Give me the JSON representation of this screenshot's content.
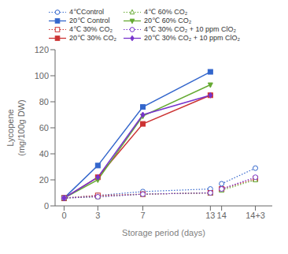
{
  "chart_data": {
    "type": "line",
    "x_label": "Storage period (days)",
    "y_label": "Lycopene\n(mg/100g DW)",
    "xlim": [
      -0.8,
      18.5
    ],
    "xticks": [
      0,
      3,
      7,
      13,
      14,
      {
        "value": 17,
        "label": "14+3"
      }
    ],
    "ylim": [
      0,
      120
    ],
    "yticks": [
      0,
      20,
      40,
      60,
      80,
      100,
      120
    ],
    "grid": false,
    "series": [
      {
        "name": "4℃Control",
        "color": "#3366cc",
        "marker": "circle",
        "line_style": "dotted",
        "x": [
          0,
          3,
          7,
          13
        ],
        "values": [
          6,
          8,
          11,
          13
        ]
      },
      {
        "name": "20℃ Control",
        "color": "#3366cc",
        "marker": "square",
        "line_style": "solid",
        "x": [
          0,
          3,
          7,
          13
        ],
        "values": [
          6,
          31,
          76,
          103
        ]
      },
      {
        "name": "4℃ 30% CO₂",
        "color": "#cc3333",
        "marker": "square",
        "line_style": "dotted",
        "x": [
          0,
          3,
          7,
          13
        ],
        "values": [
          6,
          8,
          9,
          10
        ]
      },
      {
        "name": "20℃ 30% CO₂",
        "color": "#cc3333",
        "marker": "square",
        "line_style": "solid",
        "x": [
          0,
          3,
          7,
          13
        ],
        "values": [
          6,
          22,
          63,
          85
        ]
      },
      {
        "name": "4℃ 60% CO₂",
        "color": "#66aa33",
        "marker": "triangle-up",
        "line_style": "dotted",
        "x": [
          0,
          3,
          7,
          13
        ],
        "values": [
          6,
          7,
          9,
          10
        ]
      },
      {
        "name": "20℃ 60% CO₂",
        "color": "#66aa33",
        "marker": "triangle-down",
        "line_style": "solid",
        "x": [
          0,
          3,
          7,
          13
        ],
        "values": [
          6,
          20,
          69,
          93
        ]
      },
      {
        "name": "4℃ 30% CO₂ + 10 ppm ClO₂",
        "color": "#7733cc",
        "marker": "circle",
        "line_style": "dotted",
        "x": [
          0,
          3,
          7,
          13
        ],
        "values": [
          6,
          7,
          9,
          10
        ]
      },
      {
        "name": "20℃ 30% CO₂ + 10 ppm ClO₂",
        "color": "#7733cc",
        "marker": "diamond",
        "line_style": "solid",
        "x": [
          0,
          3,
          7,
          13
        ],
        "values": [
          6,
          22,
          70,
          85
        ]
      },
      {
        "color": "#3366cc",
        "marker": "circle",
        "line_style": "dotted",
        "x": [
          14,
          17
        ],
        "values": [
          17,
          29
        ]
      },
      {
        "color": "#cc3333",
        "marker": "square",
        "line_style": "dotted",
        "x": [
          14,
          17
        ],
        "values": [
          13,
          21
        ]
      },
      {
        "color": "#66aa33",
        "marker": "triangle-up",
        "line_style": "dotted",
        "x": [
          14,
          17
        ],
        "values": [
          12,
          20
        ]
      },
      {
        "color": "#7733cc",
        "marker": "circle",
        "line_style": "dotted",
        "x": [
          14,
          17
        ],
        "values": [
          13,
          22
        ]
      }
    ]
  }
}
